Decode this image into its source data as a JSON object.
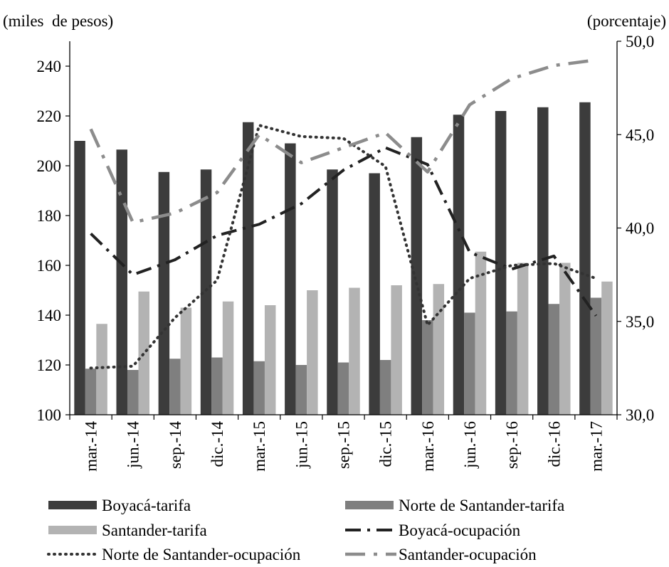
{
  "colors": {
    "boyaca_tarifa": "#3c3c3c",
    "norte_tarifa": "#7f7f7f",
    "santander_tarifa": "#b3b3b3",
    "boyaca_ocupacion": "#222222",
    "norte_ocupacion": "#333333",
    "santander_ocupacion": "#8c8c8c"
  },
  "chart_data": {
    "type": "bar",
    "left_unit_label": "(miles  de pesos)",
    "right_unit_label": "(porcentaje)",
    "categories": [
      "mar.-14",
      "jun.-14",
      "sep.-14",
      "dic.-14",
      "mar.-15",
      "jun.-15",
      "sep.-15",
      "dic.-15",
      "mar.-16",
      "jun.-16",
      "sep.-16",
      "dic.-16",
      "mar.-17"
    ],
    "ylim_left": [
      100,
      250
    ],
    "yticks_left": [
      "100",
      "120",
      "140",
      "160",
      "180",
      "200",
      "220",
      "240"
    ],
    "ylim_right": [
      30,
      50
    ],
    "yticks_right": [
      "30,0",
      "35,0",
      "40,0",
      "45,0",
      "50,0"
    ],
    "bar_series": [
      {
        "name": "Boyacá-tarifa",
        "values": [
          210,
          206.5,
          197.5,
          198.5,
          217.5,
          209,
          198.5,
          197,
          211.5,
          220.5,
          222,
          223.5,
          225.5
        ]
      },
      {
        "name": "Norte de Santander-tarifa",
        "values": [
          118.5,
          118,
          122.5,
          123,
          121.5,
          120,
          121,
          122,
          138,
          141,
          141.5,
          144.5,
          147
        ]
      },
      {
        "name": "Santander-tarifa",
        "values": [
          136.5,
          149.5,
          143,
          145.5,
          144,
          150,
          151,
          152,
          152.5,
          165.5,
          161,
          161,
          153.5
        ]
      }
    ],
    "line_series": [
      {
        "name": "Boyacá-ocupación",
        "values": [
          39.7,
          37.5,
          38.3,
          39.6,
          40.2,
          41.3,
          43.1,
          44.3,
          43.4,
          38.7,
          37.8,
          38.5,
          35.3
        ]
      },
      {
        "name": "Norte de Santander-ocupación",
        "values": [
          32.5,
          32.6,
          35.2,
          37.2,
          45.5,
          44.9,
          44.8,
          43.3,
          34.8,
          37.3,
          38.0,
          38.1,
          37.3
        ]
      },
      {
        "name": "Santander-ocupación",
        "values": [
          45.3,
          40.3,
          40.8,
          41.9,
          45.0,
          43.5,
          44.3,
          45.1,
          43.0,
          46.6,
          48.0,
          48.7,
          49.0
        ]
      }
    ],
    "legend_position": "bottom",
    "grid": false
  }
}
